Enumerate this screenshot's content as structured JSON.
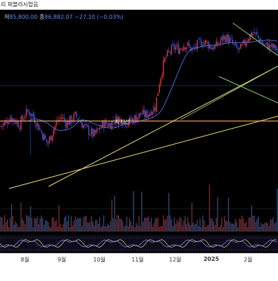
{
  "header": {
    "title": "리 퍼블리시합음",
    "low_label": "저",
    "low_value": "85,800.00",
    "close_label": "종",
    "close_value": "86,882.07",
    "change": "−27.10 (−0.03%)"
  },
  "annotations": {
    "support_label": "지지선"
  },
  "x_axis": {
    "ticks": [
      "8월",
      "9월",
      "10월",
      "11월",
      "12월",
      "2025",
      "2월"
    ]
  },
  "colors": {
    "background": "#000000",
    "up_candle": "#f23645",
    "down_candle": "#2962ff",
    "moving_average": "#4a6bd8",
    "support_line": "#e8a050",
    "trendline": "#f2e27a",
    "channel_line": "#8fd36a",
    "oscillator_1": "#e0c070",
    "oscillator_2": "#6f8cff"
  },
  "chart_data": {
    "type": "candlestick",
    "x_ticks": [
      "8월",
      "9월",
      "10월",
      "11월",
      "12월",
      "2025",
      "2월"
    ],
    "support_level_label": "지지선",
    "last_low": 85800.0,
    "last_close": 86882.07,
    "last_change": -27.1,
    "last_change_pct": -0.03,
    "price_path": [
      0.34,
      0.36,
      0.4,
      0.38,
      0.35,
      0.41,
      0.44,
      0.4,
      0.34,
      0.28,
      0.22,
      0.3,
      0.37,
      0.4,
      0.36,
      0.38,
      0.41,
      0.37,
      0.33,
      0.3,
      0.28,
      0.32,
      0.36,
      0.35,
      0.37,
      0.39,
      0.38,
      0.36,
      0.38,
      0.4,
      0.42,
      0.41,
      0.44,
      0.47,
      0.66,
      0.78,
      0.83,
      0.86,
      0.85,
      0.88,
      0.87,
      0.84,
      0.88,
      0.9,
      0.89,
      0.86,
      0.87,
      0.91,
      0.93,
      0.9,
      0.86,
      0.84,
      0.89,
      0.94,
      0.96,
      0.92,
      0.88,
      0.87,
      0.86,
      0.85
    ]
  }
}
